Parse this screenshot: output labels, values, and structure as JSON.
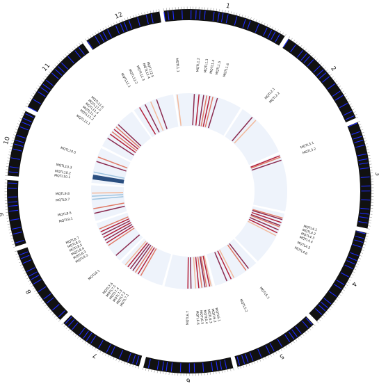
{
  "chart_data": {
    "type": "circos",
    "colors": {
      "chromosome_band": "#111111",
      "marker": "#1f2cff",
      "track_background": "#eef3fb",
      "heat_low": "#f2b89a",
      "heat_mid": "#e07a66",
      "heat_high": "#b3203a",
      "heat_alt": "#8a2a4f",
      "heat_blue": "#2b4f80",
      "heat_light_blue": "#9fc4df"
    },
    "chromosomes": [
      {
        "name": "1",
        "length": 43
      },
      {
        "name": "2",
        "length": 36
      },
      {
        "name": "3",
        "length": 37
      },
      {
        "name": "4",
        "length": 35
      },
      {
        "name": "5",
        "length": 30
      },
      {
        "name": "6",
        "length": 31
      },
      {
        "name": "7",
        "length": 30
      },
      {
        "name": "8",
        "length": 28
      },
      {
        "name": "9",
        "length": 23
      },
      {
        "name": "10",
        "length": 23
      },
      {
        "name": "11",
        "length": 29
      },
      {
        "name": "12",
        "length": 27
      }
    ],
    "qtls": [
      {
        "label": "MQTL1.1",
        "chr": "1",
        "pos": 3
      },
      {
        "label": "MQTL1.2",
        "chr": "1",
        "pos": 13
      },
      {
        "label": "MQTL1.3",
        "chr": "1",
        "pos": 17
      },
      {
        "label": "MQTL1.4",
        "chr": "1",
        "pos": 20
      },
      {
        "label": "MQTL1.5",
        "chr": "1",
        "pos": 23
      },
      {
        "label": "MQTL1.6",
        "chr": "1",
        "pos": 27
      },
      {
        "label": "MQTL2.1",
        "chr": "2",
        "pos": 7
      },
      {
        "label": "MQTL2.2",
        "chr": "2",
        "pos": 10
      },
      {
        "label": "MQTL3.1",
        "chr": "3",
        "pos": 1
      },
      {
        "label": "MQTL3.2",
        "chr": "3",
        "pos": 4
      },
      {
        "label": "MQTL4.1",
        "chr": "4",
        "pos": 4
      },
      {
        "label": "MQTL4.2",
        "chr": "4",
        "pos": 6
      },
      {
        "label": "MQTL4.3",
        "chr": "4",
        "pos": 8
      },
      {
        "label": "MQTL4.4",
        "chr": "4",
        "pos": 10
      },
      {
        "label": "MQTL4.5",
        "chr": "4",
        "pos": 13
      },
      {
        "label": "MQTL4.6",
        "chr": "4",
        "pos": 16
      },
      {
        "label": "MQTL5.1",
        "chr": "5",
        "pos": 7
      },
      {
        "label": "MQTL5.2",
        "chr": "5",
        "pos": 19
      },
      {
        "label": "MQTL6.1",
        "chr": "6",
        "pos": 1
      },
      {
        "label": "MQTL6.2",
        "chr": "6",
        "pos": 3
      },
      {
        "label": "MQTL6.3",
        "chr": "6",
        "pos": 5
      },
      {
        "label": "MQTL6.4",
        "chr": "6",
        "pos": 7
      },
      {
        "label": "MQTL6.5",
        "chr": "6",
        "pos": 9
      },
      {
        "label": "MQTL6.6",
        "chr": "6",
        "pos": 11
      },
      {
        "label": "MQTL6.7",
        "chr": "6",
        "pos": 16
      },
      {
        "label": "MQTL7.1",
        "chr": "7",
        "pos": 16
      },
      {
        "label": "MQTL7.2",
        "chr": "7",
        "pos": 18
      },
      {
        "label": "MQTL7.3",
        "chr": "7",
        "pos": 20
      },
      {
        "label": "MQTL7.4",
        "chr": "7",
        "pos": 22
      },
      {
        "label": "MQTL7.5",
        "chr": "7",
        "pos": 24
      },
      {
        "label": "MQTL7.6",
        "chr": "7",
        "pos": 26
      },
      {
        "label": "MQTL8.1",
        "chr": "8",
        "pos": 4
      },
      {
        "label": "MQTL8.2",
        "chr": "8",
        "pos": 14
      },
      {
        "label": "MQTL8.3",
        "chr": "8",
        "pos": 16
      },
      {
        "label": "MQTL8.4",
        "chr": "8",
        "pos": 18
      },
      {
        "label": "MQTL8.5",
        "chr": "8",
        "pos": 20
      },
      {
        "label": "MQTL8.6",
        "chr": "8",
        "pos": 22
      },
      {
        "label": "MQTL8.7",
        "chr": "8",
        "pos": 24
      },
      {
        "label": "MQTL9.1",
        "chr": "9",
        "pos": 5
      },
      {
        "label": "MQTL9.5",
        "chr": "9",
        "pos": 8
      },
      {
        "label": "MQTL9.7",
        "chr": "9",
        "pos": 15
      },
      {
        "label": "MQTL9.8",
        "chr": "9",
        "pos": 18
      },
      {
        "label": "MQTL10.1",
        "chr": "10",
        "pos": 2
      },
      {
        "label": "MQTL10.2",
        "chr": "10",
        "pos": 4
      },
      {
        "label": "MQTL10.3",
        "chr": "10",
        "pos": 7
      },
      {
        "label": "MQTL10.5",
        "chr": "10",
        "pos": 15
      },
      {
        "label": "MQTL11.1",
        "chr": "11",
        "pos": 7
      },
      {
        "label": "MQTL11.2",
        "chr": "11",
        "pos": 10
      },
      {
        "label": "MQTL11.3",
        "chr": "11",
        "pos": 12
      },
      {
        "label": "MQTL11.4",
        "chr": "11",
        "pos": 14
      },
      {
        "label": "MQTL11.5",
        "chr": "11",
        "pos": 16
      },
      {
        "label": "MQTL11.6",
        "chr": "11",
        "pos": 18
      },
      {
        "label": "MQTL12.1",
        "chr": "12",
        "pos": 5
      },
      {
        "label": "MQTL12.2",
        "chr": "12",
        "pos": 9
      },
      {
        "label": "MQTL12.3",
        "chr": "12",
        "pos": 13
      },
      {
        "label": "MQTL12.4",
        "chr": "12",
        "pos": 16
      },
      {
        "label": "MQTL12.5",
        "chr": "12",
        "pos": 18
      }
    ],
    "heat_lines": [
      {
        "chr": "1",
        "pos": 1,
        "level": 0.3
      },
      {
        "chr": "1",
        "pos": 12,
        "level": 0.8
      },
      {
        "chr": "1",
        "pos": 15,
        "level": 0.9
      },
      {
        "chr": "1",
        "pos": 18,
        "level": 0.85
      },
      {
        "chr": "1",
        "pos": 20,
        "level": 0.7
      },
      {
        "chr": "1",
        "pos": 22,
        "level": 0.9
      },
      {
        "chr": "1",
        "pos": 24,
        "level": 0.6
      },
      {
        "chr": "1",
        "pos": 27,
        "level": 0.75
      },
      {
        "chr": "2",
        "pos": 8,
        "level": 0.8
      },
      {
        "chr": "2",
        "pos": 11,
        "level": 0.5
      },
      {
        "chr": "3",
        "pos": 1,
        "level": 0.9
      },
      {
        "chr": "3",
        "pos": 2,
        "level": 0.6
      },
      {
        "chr": "3",
        "pos": 4,
        "level": 0.8
      },
      {
        "chr": "4",
        "pos": 3,
        "level": 0.6
      },
      {
        "chr": "4",
        "pos": 4,
        "level": 0.75
      },
      {
        "chr": "4",
        "pos": 6,
        "level": 0.9
      },
      {
        "chr": "4",
        "pos": 8,
        "level": 0.85
      },
      {
        "chr": "4",
        "pos": 9,
        "level": 0.6
      },
      {
        "chr": "4",
        "pos": 11,
        "level": 0.8
      },
      {
        "chr": "4",
        "pos": 13,
        "level": 0.9
      },
      {
        "chr": "4",
        "pos": 15,
        "level": 0.5
      },
      {
        "chr": "5",
        "pos": 6,
        "level": 0.85
      },
      {
        "chr": "5",
        "pos": 8,
        "level": 0.7
      },
      {
        "chr": "5",
        "pos": 17,
        "level": 0.5
      },
      {
        "chr": "5",
        "pos": 19,
        "level": 0.9
      },
      {
        "chr": "5",
        "pos": 22,
        "level": 0.8
      },
      {
        "chr": "6",
        "pos": 1,
        "level": 0.4
      },
      {
        "chr": "6",
        "pos": 2,
        "level": 0.9
      },
      {
        "chr": "6",
        "pos": 4,
        "level": 0.7
      },
      {
        "chr": "6",
        "pos": 5,
        "level": 0.85
      },
      {
        "chr": "6",
        "pos": 7,
        "level": 0.6
      },
      {
        "chr": "6",
        "pos": 9,
        "level": 0.9
      },
      {
        "chr": "6",
        "pos": 11,
        "level": 0.45
      },
      {
        "chr": "6",
        "pos": 14,
        "level": 0.8
      },
      {
        "chr": "6",
        "pos": 16,
        "level": 0.9
      },
      {
        "chr": "7",
        "pos": 15,
        "level": 0.7
      },
      {
        "chr": "7",
        "pos": 17,
        "level": 0.9
      },
      {
        "chr": "7",
        "pos": 19,
        "level": 0.6
      },
      {
        "chr": "7",
        "pos": 21,
        "level": 0.85
      },
      {
        "chr": "7",
        "pos": 23,
        "level": 0.75
      },
      {
        "chr": "7",
        "pos": 25,
        "level": 0.9
      },
      {
        "chr": "7",
        "pos": 27,
        "level": 0.5
      },
      {
        "chr": "8",
        "pos": 4,
        "level": 0.8
      },
      {
        "chr": "8",
        "pos": 12,
        "level": 0.6
      },
      {
        "chr": "8",
        "pos": 14,
        "level": 0.9
      },
      {
        "chr": "8",
        "pos": 16,
        "level": 0.85
      },
      {
        "chr": "8",
        "pos": 18,
        "level": 0.95
      },
      {
        "chr": "8",
        "pos": 20,
        "level": 0.8
      },
      {
        "chr": "8",
        "pos": 22,
        "level": 0.9
      },
      {
        "chr": "8",
        "pos": 24,
        "level": 0.7
      },
      {
        "chr": "9",
        "pos": 5,
        "level": 0.85
      },
      {
        "chr": "9",
        "pos": 8,
        "level": 0.6
      },
      {
        "chr": "9",
        "pos": 14,
        "level": -0.6
      },
      {
        "chr": "9",
        "pos": 16,
        "level": -0.3
      },
      {
        "chr": "9",
        "pos": 18,
        "level": 0.5
      },
      {
        "chr": "10",
        "pos": 3,
        "level": -1.0
      },
      {
        "chr": "10",
        "pos": 4,
        "level": -1.0
      },
      {
        "chr": "10",
        "pos": 5,
        "level": -0.9
      },
      {
        "chr": "10",
        "pos": 7,
        "level": -0.4
      },
      {
        "chr": "10",
        "pos": 14,
        "level": 0.8
      },
      {
        "chr": "10",
        "pos": 17,
        "level": 0.6
      },
      {
        "chr": "11",
        "pos": 6,
        "level": 0.85
      },
      {
        "chr": "11",
        "pos": 9,
        "level": 0.9
      },
      {
        "chr": "11",
        "pos": 11,
        "level": 0.7
      },
      {
        "chr": "11",
        "pos": 13,
        "level": 0.9
      },
      {
        "chr": "11",
        "pos": 15,
        "level": 0.6
      },
      {
        "chr": "11",
        "pos": 17,
        "level": 0.8
      },
      {
        "chr": "12",
        "pos": 4,
        "level": 0.9
      },
      {
        "chr": "12",
        "pos": 8,
        "level": 0.8
      },
      {
        "chr": "12",
        "pos": 12,
        "level": 0.3
      },
      {
        "chr": "12",
        "pos": 16,
        "level": 0.85
      }
    ]
  }
}
